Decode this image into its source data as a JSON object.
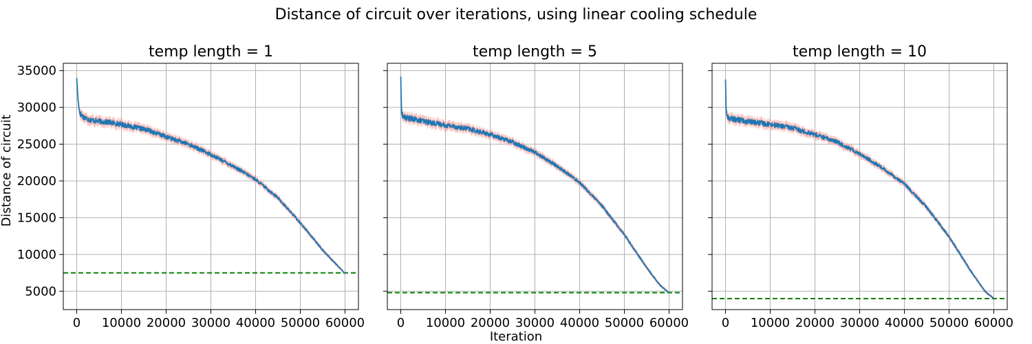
{
  "figure": {
    "title": "Distance of circuit over iterations, using linear cooling schedule",
    "xlabel": "Iteration",
    "ylabel": "Distance of circuit"
  },
  "colors": {
    "mean_line": "#1f77b4",
    "band": "#f4a6a0",
    "reference_line": "#008000",
    "grid": "#b0b0b0"
  },
  "chart_data": [
    {
      "type": "line",
      "title": "temp length = 1",
      "xlim": [
        -3000,
        63000
      ],
      "ylim": [
        2500,
        36000
      ],
      "x_ticks": [
        0,
        10000,
        20000,
        30000,
        40000,
        50000,
        60000
      ],
      "y_ticks": [
        5000,
        10000,
        15000,
        20000,
        25000,
        30000,
        35000
      ],
      "grid": true,
      "reference_value": 7500,
      "series": [
        {
          "x": [
            0,
            300,
            700,
            1500,
            3000,
            5000,
            7000,
            10000,
            13000,
            16000,
            20000,
            25000,
            30000,
            35000,
            40000,
            45000,
            50000,
            55000,
            60000
          ],
          "y": [
            34000,
            31000,
            29200,
            28700,
            28300,
            28100,
            28000,
            27700,
            27300,
            26900,
            26000,
            25000,
            23600,
            22000,
            20200,
            17700,
            14300,
            10600,
            7400
          ]
        }
      ]
    },
    {
      "type": "line",
      "title": "temp length = 5",
      "xlim": [
        -3000,
        63000
      ],
      "ylim": [
        2500,
        36000
      ],
      "x_ticks": [
        0,
        10000,
        20000,
        30000,
        40000,
        50000,
        60000
      ],
      "y_ticks": [
        5000,
        10000,
        15000,
        20000,
        25000,
        30000,
        35000
      ],
      "grid": true,
      "reference_value": 4800,
      "series": [
        {
          "x": [
            0,
            150,
            400,
            1000,
            3000,
            6000,
            10000,
            15000,
            20000,
            25000,
            30000,
            35000,
            40000,
            45000,
            50000,
            55000,
            58000,
            60000
          ],
          "y": [
            34200,
            29800,
            28800,
            28600,
            28400,
            28000,
            27600,
            27100,
            26300,
            25300,
            23900,
            22000,
            19800,
            16600,
            12700,
            8200,
            5800,
            4800
          ]
        }
      ]
    },
    {
      "type": "line",
      "title": "temp length = 10",
      "xlim": [
        -3000,
        63000
      ],
      "ylim": [
        2500,
        36000
      ],
      "x_ticks": [
        0,
        10000,
        20000,
        30000,
        40000,
        50000,
        60000
      ],
      "y_ticks": [
        5000,
        10000,
        15000,
        20000,
        25000,
        30000,
        35000
      ],
      "grid": true,
      "reference_value": 4000,
      "series": [
        {
          "x": [
            0,
            150,
            400,
            1000,
            3000,
            6000,
            10000,
            15000,
            20000,
            25000,
            30000,
            35000,
            40000,
            45000,
            50000,
            55000,
            58000,
            60000
          ],
          "y": [
            33800,
            29500,
            28700,
            28500,
            28300,
            28000,
            27700,
            27200,
            26300,
            25300,
            23700,
            21800,
            19600,
            16400,
            12400,
            7600,
            5000,
            4000
          ]
        }
      ]
    }
  ]
}
